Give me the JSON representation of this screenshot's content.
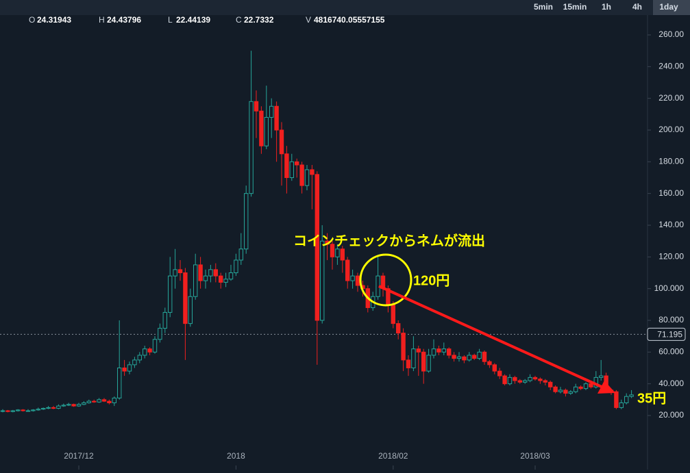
{
  "chart_data": {
    "type": "candlestick",
    "header": {
      "items": [
        {
          "label": "O",
          "value": 24.31943
        },
        {
          "label": "H",
          "value": 24.43796
        },
        {
          "label": "L",
          "value": 22.44139
        },
        {
          "label": "C",
          "value": 22.7332
        },
        {
          "label": "V",
          "value": 4816740.05557155
        }
      ]
    },
    "timeframes": [
      "5min",
      "15min",
      "1h",
      "4h",
      "1day"
    ],
    "active_timeframe": 4,
    "up_color": "#26a69a",
    "down_color": "#f0201f",
    "ylim": [
      7,
      270
    ],
    "yticks": [
      {
        "value": 20,
        "label": "20.000"
      },
      {
        "value": 40,
        "label": "40.000"
      },
      {
        "value": 60,
        "label": "60.000"
      },
      {
        "value": 80,
        "label": "80.000"
      },
      {
        "value": 100,
        "label": "100.000"
      },
      {
        "value": 120,
        "label": "120.00"
      },
      {
        "value": 140,
        "label": "140.00"
      },
      {
        "value": 160,
        "label": "160.00"
      },
      {
        "value": 180,
        "label": "180.00"
      },
      {
        "value": 200,
        "label": "200.00"
      },
      {
        "value": 220,
        "label": "220.00"
      },
      {
        "value": 240,
        "label": "240.00"
      },
      {
        "value": 260,
        "label": "260.00"
      }
    ],
    "xticks": [
      {
        "value": 15,
        "label": "2017/12"
      },
      {
        "value": 46,
        "label": "2018"
      },
      {
        "value": 77,
        "label": "2018/02"
      },
      {
        "value": 105,
        "label": "2018/03"
      }
    ],
    "last_price": {
      "value": 71.195,
      "label": "71.195"
    },
    "annotations": {
      "headline": "コインチェックからネムが流出",
      "high_note": "120円",
      "low_note": "35円"
    },
    "candles": [
      [
        23,
        24,
        22,
        23
      ],
      [
        23,
        23.5,
        22,
        22.5
      ],
      [
        22.5,
        23.5,
        22,
        23
      ],
      [
        23,
        24,
        22.5,
        23.5
      ],
      [
        23.5,
        24,
        22.5,
        23
      ],
      [
        23,
        24,
        22.5,
        23
      ],
      [
        23,
        24,
        22.5,
        23.5
      ],
      [
        23.5,
        25,
        23,
        24
      ],
      [
        24,
        25,
        23.5,
        24.5
      ],
      [
        24.5,
        26,
        24,
        25
      ],
      [
        25,
        26,
        24,
        24.5
      ],
      [
        24.5,
        27,
        24,
        26
      ],
      [
        26,
        27.5,
        25.5,
        26.5
      ],
      [
        26.5,
        28,
        26,
        27
      ],
      [
        27,
        27.5,
        25.5,
        26
      ],
      [
        26,
        28,
        25.5,
        27
      ],
      [
        27,
        29,
        26.5,
        28
      ],
      [
        28,
        30,
        27.5,
        29
      ],
      [
        29,
        30,
        28,
        28.5
      ],
      [
        28.5,
        31,
        28,
        30
      ],
      [
        30,
        31,
        28.5,
        29
      ],
      [
        29,
        30,
        27,
        28
      ],
      [
        28,
        32,
        26,
        31
      ],
      [
        31,
        80,
        30,
        50
      ],
      [
        50,
        55,
        45,
        48
      ],
      [
        48,
        54,
        46,
        52
      ],
      [
        52,
        57,
        50,
        55
      ],
      [
        55,
        60,
        53,
        58
      ],
      [
        58,
        64,
        56,
        62
      ],
      [
        62,
        63,
        58,
        60
      ],
      [
        60,
        70,
        59,
        68
      ],
      [
        68,
        78,
        66,
        75
      ],
      [
        75,
        88,
        72,
        85
      ],
      [
        85,
        120,
        82,
        108
      ],
      [
        108,
        125,
        100,
        112
      ],
      [
        112,
        118,
        105,
        110
      ],
      [
        110,
        113,
        55,
        78
      ],
      [
        78,
        100,
        76,
        95
      ],
      [
        95,
        122,
        93,
        115
      ],
      [
        115,
        120,
        100,
        105
      ],
      [
        105,
        112,
        100,
        108
      ],
      [
        108,
        115,
        104,
        112
      ],
      [
        112,
        116,
        104,
        108
      ],
      [
        108,
        110,
        100,
        104
      ],
      [
        104,
        110,
        101,
        106
      ],
      [
        106,
        115,
        105,
        110
      ],
      [
        110,
        122,
        108,
        118
      ],
      [
        118,
        135,
        115,
        125
      ],
      [
        125,
        165,
        122,
        160
      ],
      [
        160,
        250,
        158,
        218
      ],
      [
        218,
        225,
        195,
        212
      ],
      [
        212,
        215,
        185,
        190
      ],
      [
        190,
        228,
        188,
        208
      ],
      [
        208,
        220,
        195,
        215
      ],
      [
        215,
        218,
        180,
        200
      ],
      [
        200,
        205,
        165,
        185
      ],
      [
        185,
        190,
        160,
        170
      ],
      [
        170,
        185,
        168,
        180
      ],
      [
        180,
        182,
        170,
        178
      ],
      [
        178,
        180,
        160,
        165
      ],
      [
        165,
        178,
        162,
        175
      ],
      [
        175,
        178,
        150,
        172
      ],
      [
        172,
        174,
        52,
        80
      ],
      [
        80,
        140,
        78,
        130
      ],
      [
        130,
        135,
        118,
        128
      ],
      [
        128,
        130,
        112,
        120
      ],
      [
        120,
        128,
        115,
        125
      ],
      [
        125,
        127,
        110,
        118
      ],
      [
        118,
        120,
        100,
        105
      ],
      [
        105,
        112,
        100,
        108
      ],
      [
        108,
        110,
        98,
        102
      ],
      [
        102,
        105,
        95,
        100
      ],
      [
        100,
        102,
        85,
        88
      ],
      [
        88,
        98,
        86,
        95
      ],
      [
        95,
        120,
        93,
        108
      ],
      [
        108,
        110,
        95,
        100
      ],
      [
        100,
        102,
        85,
        90
      ],
      [
        90,
        92,
        75,
        78
      ],
      [
        78,
        80,
        68,
        72
      ],
      [
        72,
        75,
        48,
        55
      ],
      [
        55,
        58,
        45,
        50
      ],
      [
        50,
        70,
        48,
        62
      ],
      [
        62,
        64,
        45,
        60
      ],
      [
        60,
        62,
        40,
        48
      ],
      [
        48,
        62,
        47,
        58
      ],
      [
        58,
        68,
        56,
        62
      ],
      [
        62,
        64,
        58,
        60
      ],
      [
        60,
        66,
        58,
        62
      ],
      [
        62,
        63,
        56,
        58
      ],
      [
        58,
        60,
        54,
        56
      ],
      [
        56,
        60,
        54,
        57
      ],
      [
        57,
        58,
        53,
        55
      ],
      [
        55,
        60,
        54,
        58
      ],
      [
        58,
        59,
        55,
        56
      ],
      [
        56,
        62,
        55,
        60
      ],
      [
        60,
        61,
        52,
        54
      ],
      [
        54,
        55,
        50,
        52
      ],
      [
        52,
        53,
        46,
        48
      ],
      [
        48,
        50,
        43,
        45
      ],
      [
        45,
        46,
        39,
        40
      ],
      [
        40,
        46,
        39,
        44
      ],
      [
        44,
        45,
        40,
        42
      ],
      [
        42,
        43,
        40,
        41
      ],
      [
        41,
        43,
        40,
        42
      ],
      [
        42,
        46,
        41,
        44
      ],
      [
        44,
        45,
        42,
        43
      ],
      [
        43,
        44,
        40,
        42
      ],
      [
        42,
        43,
        39,
        41
      ],
      [
        41,
        42,
        36,
        38
      ],
      [
        38,
        39,
        34,
        35
      ],
      [
        35,
        38,
        34,
        36
      ],
      [
        36,
        37,
        32,
        34
      ],
      [
        34,
        36,
        33,
        35
      ],
      [
        35,
        40,
        34,
        38
      ],
      [
        38,
        39,
        36,
        37
      ],
      [
        37,
        41,
        36,
        40
      ],
      [
        40,
        42,
        37,
        38
      ],
      [
        38,
        48,
        37,
        44
      ],
      [
        44,
        55,
        42,
        45
      ],
      [
        45,
        47,
        35,
        36
      ],
      [
        36,
        37,
        33,
        35
      ],
      [
        35,
        36,
        24,
        25
      ],
      [
        25,
        30,
        24,
        28
      ],
      [
        28,
        34,
        27,
        32
      ],
      [
        32,
        36,
        31,
        33
      ]
    ]
  }
}
